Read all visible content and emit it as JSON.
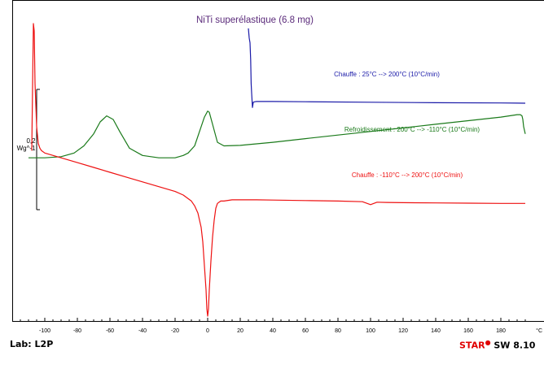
{
  "chart_data": {
    "type": "line",
    "title": "NiTi superélastique (6.8 mg)",
    "xlabel": "°C",
    "x_ticks": [
      -100,
      -80,
      -60,
      -40,
      -20,
      0,
      20,
      40,
      60,
      80,
      100,
      120,
      140,
      160,
      180
    ],
    "xlim": [
      -116,
      195
    ],
    "scale_bar": {
      "value": "0,2",
      "unit": "Wg^-1"
    },
    "colors": {
      "chauffe_200": "#1a1aa8",
      "refroidissement": "#1a7a1a",
      "chauffe_110": "#ee1111",
      "title": "#5a2a7a"
    },
    "series": [
      {
        "name": "Chauffe : 25°C --> 200°C (10°C/min)",
        "color": "#1a1aa8",
        "x": [
          25,
          25.5,
          26,
          26.4,
          26.7,
          27,
          27.5,
          28,
          29,
          30,
          40,
          60,
          100,
          140,
          180,
          195
        ],
        "y": [
          0.93,
          0.89,
          0.87,
          0.8,
          0.7,
          0.66,
          0.6,
          0.622,
          0.624,
          0.625,
          0.625,
          0.624,
          0.622,
          0.62,
          0.619,
          0.618
        ]
      },
      {
        "name": "Refroidissement : 200°C --> -110°C (10°C/min)",
        "color": "#1a7a1a",
        "x": [
          195,
          194,
          193.5,
          193,
          192,
          190,
          180,
          160,
          140,
          120,
          100,
          80,
          60,
          40,
          20,
          10,
          6,
          3,
          1,
          0,
          -2,
          -5,
          -8,
          -12,
          -15,
          -20,
          -30,
          -40,
          -48,
          -54,
          -58,
          -62,
          -66,
          -70,
          -76,
          -82,
          -90,
          -100,
          -110
        ],
        "y": [
          0.49,
          0.52,
          0.55,
          0.565,
          0.57,
          0.57,
          0.56,
          0.545,
          0.53,
          0.515,
          0.5,
          0.485,
          0.47,
          0.455,
          0.442,
          0.44,
          0.455,
          0.53,
          0.58,
          0.585,
          0.56,
          0.5,
          0.44,
          0.41,
          0.4,
          0.39,
          0.39,
          0.4,
          0.43,
          0.5,
          0.55,
          0.565,
          0.54,
          0.49,
          0.44,
          0.41,
          0.395,
          0.39,
          0.39
        ]
      },
      {
        "name": "Chauffe : -110°C --> 200°C (10°C/min)",
        "color": "#ee1111",
        "x": [
          -108,
          -107.5,
          -107,
          -106.5,
          -106,
          -105,
          -104,
          -103,
          -102,
          -100,
          -90,
          -80,
          -70,
          -60,
          -50,
          -40,
          -30,
          -20,
          -15,
          -10,
          -8,
          -6,
          -4,
          -3,
          -2,
          -1,
          -0.5,
          0,
          0.5,
          1,
          2,
          3,
          4,
          5,
          6,
          8,
          10,
          15,
          20,
          30,
          40,
          60,
          80,
          95,
          100,
          104,
          110,
          120,
          140,
          160,
          180,
          195
        ],
        "y": [
          0.42,
          0.69,
          0.95,
          0.92,
          0.7,
          0.52,
          0.45,
          0.43,
          0.42,
          0.41,
          0.39,
          0.37,
          0.35,
          0.33,
          0.31,
          0.29,
          0.27,
          0.25,
          0.235,
          0.21,
          0.19,
          0.16,
          0.1,
          0.04,
          -0.06,
          -0.16,
          -0.24,
          -0.27,
          -0.24,
          -0.16,
          -0.04,
          0.06,
          0.13,
          0.18,
          0.2,
          0.21,
          0.21,
          0.215,
          0.215,
          0.215,
          0.214,
          0.212,
          0.21,
          0.207,
          0.195,
          0.205,
          0.204,
          0.203,
          0.202,
          0.201,
          0.2,
          0.2
        ]
      }
    ]
  },
  "footer": {
    "lab": "Lab: L2P",
    "software_prefix": "STAR",
    "software_suffix": " SW 8.10"
  }
}
